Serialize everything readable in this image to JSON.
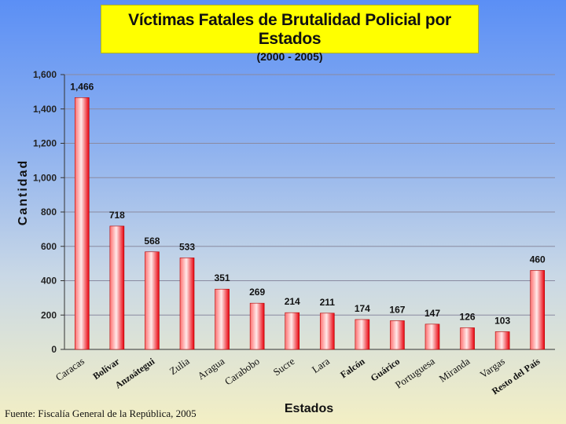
{
  "title": "Víctimas Fatales de Brutalidad Policial por Estados",
  "subtitle": "(2000 - 2005)",
  "source": "Fuente: Fiscalía General de la República, 2005",
  "chart_data": {
    "type": "bar",
    "title": "Víctimas Fatales de Brutalidad Policial por Estados",
    "subtitle": "(2000 - 2005)",
    "xlabel": "Estados",
    "ylabel": "Cantidad",
    "ylim": [
      0,
      1600
    ],
    "yticks": [
      0,
      200,
      400,
      600,
      800,
      1000,
      1200,
      1400,
      1600
    ],
    "ytick_labels": [
      "0",
      "200",
      "400",
      "600",
      "800",
      "1,000",
      "1,200",
      "1,400",
      "1,600"
    ],
    "grid": true,
    "categories": [
      "Caracas",
      "Bolívar",
      "Anzoátegui",
      "Zulia",
      "Aragua",
      "Carabobo",
      "Sucre",
      "Lara",
      "Falcón",
      "Guárico",
      "Portuguesa",
      "Miranda",
      "Vargas",
      "Resto del País"
    ],
    "values": [
      1466,
      718,
      568,
      533,
      351,
      269,
      214,
      211,
      174,
      167,
      147,
      126,
      103,
      460
    ],
    "value_labels": [
      "1,466",
      "718",
      "568",
      "533",
      "351",
      "269",
      "214",
      "211",
      "174",
      "167",
      "147",
      "126",
      "103",
      "460"
    ],
    "bar_color": "#e8000b"
  }
}
